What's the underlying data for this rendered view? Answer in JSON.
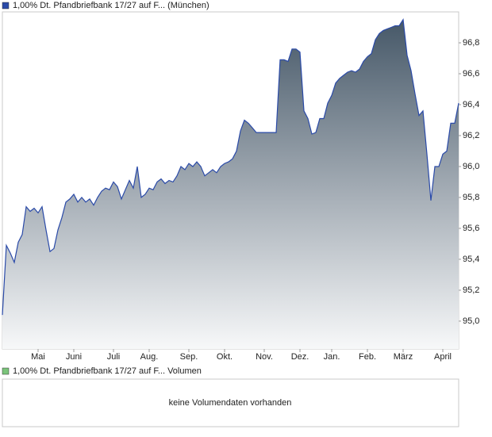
{
  "chart_data": {
    "type": "area",
    "categories": [
      null,
      null,
      null,
      null,
      null,
      null,
      null,
      null,
      null,
      "Mai",
      null,
      null,
      null,
      null,
      null,
      null,
      null,
      null,
      "Juni",
      null,
      null,
      null,
      null,
      null,
      null,
      null,
      null,
      null,
      "Juli",
      null,
      null,
      null,
      null,
      null,
      null,
      null,
      null,
      "Aug.",
      null,
      null,
      null,
      null,
      null,
      null,
      null,
      null,
      null,
      "Sep.",
      null,
      null,
      null,
      null,
      null,
      null,
      null,
      null,
      "Okt.",
      null,
      null,
      null,
      null,
      null,
      null,
      null,
      null,
      null,
      "Nov.",
      null,
      null,
      null,
      null,
      null,
      null,
      null,
      null,
      "Dez.",
      null,
      null,
      null,
      null,
      null,
      null,
      null,
      "Jan.",
      null,
      null,
      null,
      null,
      null,
      null,
      null,
      null,
      "Feb.",
      null,
      null,
      null,
      null,
      null,
      null,
      null,
      null,
      "März",
      null,
      null,
      null,
      null,
      null,
      null,
      null,
      null,
      null,
      "April",
      null,
      null,
      null,
      null
    ],
    "series": [
      {
        "name": "1,00% Dt. Pfandbriefbank 17/27 auf F... (München)",
        "color": "#2a4aa8",
        "values": [
          95.04,
          95.49,
          95.44,
          95.38,
          95.51,
          95.56,
          95.74,
          95.71,
          95.73,
          95.7,
          95.74,
          95.59,
          95.45,
          95.47,
          95.59,
          95.67,
          95.77,
          95.79,
          95.82,
          95.77,
          95.8,
          95.77,
          95.79,
          95.75,
          95.8,
          95.84,
          95.86,
          95.85,
          95.9,
          95.87,
          95.79,
          95.85,
          95.91,
          95.86,
          96.0,
          95.8,
          95.82,
          95.86,
          95.85,
          95.9,
          95.92,
          95.89,
          95.91,
          95.9,
          95.94,
          96.0,
          95.98,
          96.02,
          96.0,
          96.03,
          96.0,
          95.94,
          95.96,
          95.98,
          95.96,
          96.0,
          96.02,
          96.03,
          96.05,
          96.1,
          96.23,
          96.3,
          96.28,
          96.25,
          96.22,
          96.22,
          96.22,
          96.22,
          96.22,
          96.22,
          96.69,
          96.69,
          96.68,
          96.76,
          96.76,
          96.74,
          96.36,
          96.31,
          96.21,
          96.22,
          96.31,
          96.31,
          96.41,
          96.46,
          96.54,
          96.57,
          96.59,
          96.61,
          96.62,
          96.61,
          96.63,
          96.68,
          96.71,
          96.73,
          96.82,
          96.86,
          96.88,
          96.89,
          96.9,
          96.91,
          96.91,
          96.95,
          96.72,
          96.62,
          96.47,
          96.33,
          96.36,
          96.08,
          95.78,
          96.0,
          96.0,
          96.08,
          96.1,
          96.28,
          96.28,
          96.41
        ]
      }
    ],
    "ylim": [
      94.82,
      97.0
    ],
    "yticks": [
      {
        "value": 95.0,
        "label": "95,0"
      },
      {
        "value": 95.2,
        "label": "95,2"
      },
      {
        "value": 95.4,
        "label": "95,4"
      },
      {
        "value": 95.6,
        "label": "95,6"
      },
      {
        "value": 95.8,
        "label": "95,8"
      },
      {
        "value": 96.0,
        "label": "96,0"
      },
      {
        "value": 96.2,
        "label": "96,2"
      },
      {
        "value": 96.4,
        "label": "96,4"
      },
      {
        "value": 96.6,
        "label": "96,6"
      },
      {
        "value": 96.8,
        "label": "96,8"
      }
    ]
  },
  "volume_panel": {
    "legend": "1,00% Dt. Pfandbriefbank 17/27 auf F... Volumen",
    "message": "keine Volumendaten vorhanden"
  }
}
